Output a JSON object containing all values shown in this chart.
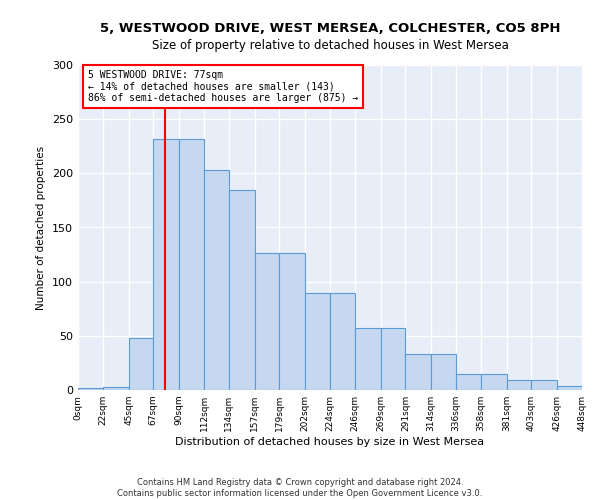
{
  "title_line1": "5, WESTWOOD DRIVE, WEST MERSEA, COLCHESTER, CO5 8PH",
  "title_line2": "Size of property relative to detached houses in West Mersea",
  "xlabel": "Distribution of detached houses by size in West Mersea",
  "ylabel": "Number of detached properties",
  "footer_line1": "Contains HM Land Registry data © Crown copyright and database right 2024.",
  "footer_line2": "Contains public sector information licensed under the Open Government Licence v3.0.",
  "bin_labels": [
    "0sqm",
    "22sqm",
    "45sqm",
    "67sqm",
    "90sqm",
    "112sqm",
    "134sqm",
    "157sqm",
    "179sqm",
    "202sqm",
    "224sqm",
    "246sqm",
    "269sqm",
    "291sqm",
    "314sqm",
    "336sqm",
    "358sqm",
    "381sqm",
    "403sqm",
    "426sqm",
    "448sqm"
  ],
  "bin_edges": [
    0,
    22,
    45,
    67,
    90,
    112,
    134,
    157,
    179,
    202,
    224,
    246,
    269,
    291,
    314,
    336,
    358,
    381,
    403,
    426,
    448
  ],
  "bar_h": [
    2,
    3,
    48,
    232,
    232,
    203,
    185,
    126,
    126,
    90,
    90,
    57,
    57,
    33,
    33,
    15,
    15,
    9,
    9,
    4
  ],
  "bar_color": "#c5d8f0",
  "bar_edge_color": "#5b9bd5",
  "property_size": 77,
  "annotation_line1": "5 WESTWOOD DRIVE: 77sqm",
  "annotation_line2": "← 14% of detached houses are smaller (143)",
  "annotation_line3": "86% of semi-detached houses are larger (875) →",
  "annotation_box_color": "white",
  "annotation_box_edge_color": "red",
  "red_line_color": "red",
  "ylim": [
    0,
    300
  ],
  "yticks": [
    0,
    50,
    100,
    150,
    200,
    250,
    300
  ],
  "background_color": "#e8eef8",
  "grid_color": "white"
}
